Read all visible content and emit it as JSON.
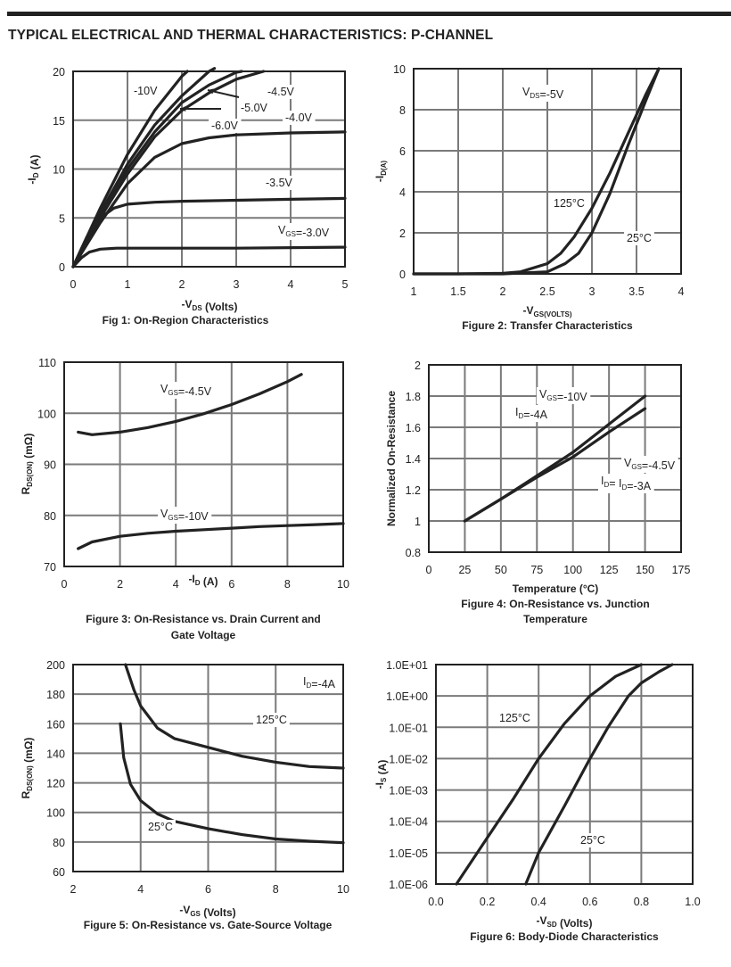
{
  "page_title": "TYPICAL ELECTRICAL AND THERMAL CHARACTERISTICS: P-CHANNEL",
  "chart_data": [
    {
      "id": "fig1",
      "type": "line",
      "title": "Fig 1: On-Region Characteristics",
      "xlabel": "-V_DS (Volts)",
      "ylabel": "-I_D (A)",
      "xlim": [
        0,
        5
      ],
      "ylim": [
        0,
        20
      ],
      "xticks": [
        "0",
        "1",
        "2",
        "3",
        "4",
        "5"
      ],
      "yticks": [
        "0",
        "5",
        "10",
        "15",
        "20"
      ],
      "grid": true,
      "series": [
        {
          "name": "-10V",
          "label": "-10V",
          "x": [
            0,
            0.5,
            1,
            1.5,
            2,
            2.1
          ],
          "y": [
            0,
            6,
            11.5,
            16,
            19.5,
            20
          ]
        },
        {
          "name": "-6.0V",
          "label": "-6.0V",
          "x": [
            0,
            0.5,
            1,
            1.5,
            2,
            2.5,
            2.6
          ],
          "y": [
            0,
            5.5,
            10.5,
            14.5,
            17.5,
            20,
            20.3
          ]
        },
        {
          "name": "-5.0V",
          "label": "-5.0V",
          "x": [
            0,
            0.5,
            1,
            1.5,
            2,
            2.5,
            3,
            3.1
          ],
          "y": [
            0,
            5.3,
            10,
            13.8,
            16.8,
            18.6,
            19.9,
            20
          ]
        },
        {
          "name": "-4.5V",
          "label": "-4.5V",
          "x": [
            0,
            0.5,
            1,
            1.5,
            2,
            2.5,
            3,
            3.5
          ],
          "y": [
            0,
            5,
            9.5,
            13.3,
            16,
            17.8,
            19.2,
            20
          ]
        },
        {
          "name": "-4.0V",
          "label": "-4.0V",
          "x": [
            0,
            0.5,
            1,
            1.5,
            2,
            2.5,
            3,
            4,
            5
          ],
          "y": [
            0,
            4.5,
            8.5,
            11.2,
            12.6,
            13.2,
            13.5,
            13.7,
            13.8
          ]
        },
        {
          "name": "-3.5V",
          "label": "-3.5V",
          "x": [
            0,
            0.25,
            0.5,
            0.75,
            1,
            1.5,
            2,
            3,
            4,
            5
          ],
          "y": [
            0,
            3,
            5,
            6,
            6.4,
            6.6,
            6.7,
            6.8,
            6.9,
            7
          ]
        },
        {
          "name": "V_GS=-3.0V",
          "label": "V_GS=-3.0V",
          "x": [
            0,
            0.15,
            0.3,
            0.5,
            0.8,
            1.5,
            3,
            5
          ],
          "y": [
            0,
            0.9,
            1.5,
            1.8,
            1.9,
            1.9,
            1.9,
            2
          ]
        }
      ],
      "annotations": [
        "-10V",
        "-6.0V",
        "-5.0V",
        "-4.5V",
        "-4.0V",
        "-3.5V",
        "V_GS=-3.0V"
      ]
    },
    {
      "id": "fig2",
      "type": "line",
      "title": "Figure 2: Transfer Characteristics",
      "xlabel": "-V_GS(Volts)",
      "ylabel": "-I_D(A)",
      "xlim": [
        1,
        4
      ],
      "ylim": [
        0,
        10
      ],
      "xticks": [
        "1",
        "1.5",
        "2",
        "2.5",
        "3",
        "3.5",
        "4"
      ],
      "yticks": [
        "0",
        "2",
        "4",
        "6",
        "8",
        "10"
      ],
      "grid": true,
      "series": [
        {
          "name": "125°C",
          "x": [
            1,
            1.5,
            2,
            2.2,
            2.5,
            2.65,
            2.8,
            3,
            3.2,
            3.4,
            3.6,
            3.75
          ],
          "y": [
            0,
            0,
            0.03,
            0.1,
            0.5,
            1,
            1.8,
            3.2,
            4.9,
            6.8,
            8.7,
            10
          ]
        },
        {
          "name": "25°C",
          "x": [
            1,
            1.5,
            2,
            2.5,
            2.7,
            2.85,
            3,
            3.2,
            3.4,
            3.6,
            3.75
          ],
          "y": [
            0,
            0,
            0,
            0.1,
            0.5,
            1,
            2,
            3.9,
            6.2,
            8.4,
            10
          ]
        }
      ],
      "annotations": [
        "V_DS=-5V",
        "125°C",
        "25°C"
      ]
    },
    {
      "id": "fig3",
      "type": "line",
      "title": "Figure 3: On-Resistance vs. Drain Current and Gate Voltage",
      "xlabel": "-I_D (A)",
      "ylabel": "R_DS(ON) (mΩ)",
      "xlim": [
        0,
        10
      ],
      "ylim": [
        70,
        110
      ],
      "xticks": [
        "0",
        "2",
        "4",
        "6",
        "8",
        "10"
      ],
      "yticks": [
        "70",
        "80",
        "90",
        "100",
        "110"
      ],
      "grid": true,
      "series": [
        {
          "name": "V_GS=-4.5V",
          "x": [
            0.5,
            1,
            2,
            3,
            4,
            5,
            6,
            7,
            8,
            8.5
          ],
          "y": [
            96.3,
            95.8,
            96.3,
            97.2,
            98.4,
            99.9,
            101.7,
            103.8,
            106.2,
            107.6
          ]
        },
        {
          "name": "V_GS=-10V",
          "x": [
            0.5,
            1,
            2,
            3,
            4,
            5,
            6,
            7,
            8,
            9,
            10
          ],
          "y": [
            73.5,
            74.8,
            75.9,
            76.5,
            76.9,
            77.2,
            77.5,
            77.8,
            78,
            78.2,
            78.4
          ]
        }
      ],
      "annotations": [
        "V_GS=-4.5V",
        "V_GS=-10V"
      ]
    },
    {
      "id": "fig4",
      "type": "line",
      "title": "Figure 4: On-Resistance vs. Junction Temperature",
      "xlabel": "Temperature (°C)",
      "ylabel": "Normalized On-Resistance",
      "xlim": [
        0,
        175
      ],
      "ylim": [
        0.8,
        2
      ],
      "xticks": [
        "0",
        "25",
        "50",
        "75",
        "100",
        "125",
        "150",
        "175"
      ],
      "yticks": [
        "0.8",
        "1",
        "1.2",
        "1.4",
        "1.6",
        "1.8",
        "2"
      ],
      "grid": true,
      "series": [
        {
          "name": "V_GS=-10V, I_D=-4A",
          "x": [
            25,
            50,
            75,
            100,
            125,
            150
          ],
          "y": [
            1,
            1.14,
            1.29,
            1.44,
            1.62,
            1.8
          ]
        },
        {
          "name": "V_GS=-4.5V, I_D=-3A",
          "x": [
            25,
            50,
            75,
            100,
            125,
            150
          ],
          "y": [
            1,
            1.14,
            1.28,
            1.41,
            1.57,
            1.72
          ]
        }
      ],
      "annotations": [
        "V_GS=-10V",
        "I_D=-4A",
        "V_GS=-4.5V",
        "I_D= I_D=-3A"
      ]
    },
    {
      "id": "fig5",
      "type": "line",
      "title": "Figure 5: On-Resistance vs. Gate-Source Voltage",
      "xlabel": "-V_GS (Volts)",
      "ylabel": "R_DS(ON) (mΩ)",
      "xlim": [
        2,
        10
      ],
      "ylim": [
        60,
        200
      ],
      "xticks": [
        "2",
        "4",
        "6",
        "8",
        "10"
      ],
      "yticks": [
        "60",
        "80",
        "100",
        "120",
        "140",
        "160",
        "180",
        "200"
      ],
      "grid": true,
      "series": [
        {
          "name": "125°C",
          "x": [
            3.55,
            3.8,
            4,
            4.5,
            5,
            6,
            7,
            8,
            9,
            10
          ],
          "y": [
            200,
            183,
            172,
            157,
            150,
            144,
            138,
            134,
            131,
            130
          ]
        },
        {
          "name": "25°C",
          "x": [
            3.4,
            3.5,
            3.7,
            4,
            4.5,
            5,
            6,
            7,
            8,
            9,
            10
          ],
          "y": [
            160,
            137,
            119,
            108,
            99,
            94,
            89,
            85,
            82,
            80.5,
            79.5
          ]
        }
      ],
      "annotations": [
        "I_D=-4A",
        "125°C",
        "25°C"
      ]
    },
    {
      "id": "fig6",
      "type": "line",
      "yscale": "log",
      "title": "Figure 6: Body-Diode Characteristics",
      "xlabel": "-V_SD (Volts)",
      "ylabel": "-I_S (A)",
      "xlim": [
        0,
        1.0
      ],
      "ylim": [
        1e-06,
        10
      ],
      "xticks": [
        "0.0",
        "0.2",
        "0.4",
        "0.6",
        "0.8",
        "1.0"
      ],
      "yticks": [
        "1.0E-06",
        "1.0E-05",
        "1.0E-04",
        "1.0E-03",
        "1.0E-02",
        "1.0E-01",
        "1.0E+00",
        "1.0E+01"
      ],
      "grid": true,
      "series": [
        {
          "name": "125°C",
          "x": [
            0.08,
            0.2,
            0.3,
            0.4,
            0.5,
            0.6,
            0.7,
            0.8
          ],
          "y": [
            1e-06,
            3e-05,
            0.0005,
            0.01,
            0.13,
            1,
            4.2,
            10
          ]
        },
        {
          "name": "25°C",
          "x": [
            0.35,
            0.4,
            0.5,
            0.6,
            0.67,
            0.75,
            0.8,
            0.87,
            0.92
          ],
          "y": [
            1e-06,
            1e-05,
            0.0003,
            0.01,
            0.1,
            1,
            2.6,
            6,
            10
          ]
        }
      ],
      "annotations": [
        "125°C",
        "25°C"
      ]
    }
  ]
}
